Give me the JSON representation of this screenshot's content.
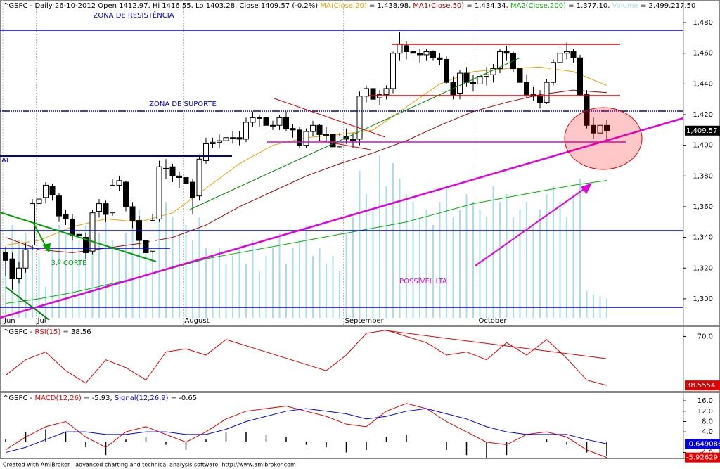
{
  "chart_data": [
    {
      "type": "candlestick",
      "legend": [
        {
          "text": "^GSPC - Daily 26-10-2012 Open 1412.97, Hi 1416.55, Lo 1403.28, Close 1409.57 (-0.2%) ",
          "color": "#000000"
        },
        {
          "text": "MA(Close,20)",
          "color": "#f0a000"
        },
        {
          "text": " = 1,438.98, ",
          "color": "#000000"
        },
        {
          "text": "MA1(Close,50)",
          "color": "#a00000"
        },
        {
          "text": " = 1,434.34, ",
          "color": "#000000"
        },
        {
          "text": "MA2(Close,200)",
          "color": "#00b000"
        },
        {
          "text": " = 1,377.10, ",
          "color": "#000000"
        },
        {
          "text": "Volume",
          "color": "#a8dcef"
        },
        {
          "text": " = 2,499,217.50",
          "color": "#000000"
        }
      ],
      "annotations": [
        "ZONA DE RESISTÊNCIA",
        "ZONA DE SUPORTE",
        "3.º CORTE",
        "POSSÍVEL LTA",
        "AL"
      ],
      "month_labels": [
        {
          "index": 0,
          "label": "Jun"
        },
        {
          "index": 5,
          "label": "Jul"
        },
        {
          "index": 27,
          "label": "August"
        },
        {
          "index": 51,
          "label": "September"
        },
        {
          "index": 71,
          "label": "October"
        }
      ],
      "open": [
        1330,
        1326,
        1313,
        1320,
        1335,
        1362,
        1366,
        1373,
        1367,
        1355,
        1352,
        1342,
        1340,
        1331,
        1357,
        1362,
        1356,
        1374,
        1376,
        1360,
        1351,
        1338,
        1331,
        1352,
        1385,
        1386,
        1380,
        1379,
        1376,
        1367,
        1390,
        1401,
        1402,
        1403,
        1405,
        1405,
        1404,
        1415,
        1418,
        1418,
        1413,
        1413,
        1418,
        1411,
        1410,
        1400,
        1409,
        1413,
        1407,
        1407,
        1399,
        1406,
        1404,
        1404,
        1432,
        1437,
        1431,
        1433,
        1437,
        1460,
        1465,
        1461,
        1460,
        1459,
        1461,
        1457,
        1456,
        1441,
        1434,
        1447,
        1441,
        1440,
        1445,
        1446,
        1450,
        1461,
        1460,
        1450,
        1441,
        1433,
        1432,
        1428,
        1441,
        1454,
        1460,
        1461,
        1457,
        1433,
        1413,
        1408,
        1412.97
      ],
      "high": [
        1334,
        1330,
        1324,
        1336,
        1365,
        1372,
        1376,
        1375,
        1369,
        1358,
        1355,
        1346,
        1343,
        1358,
        1365,
        1364,
        1378,
        1380,
        1377,
        1363,
        1354,
        1340,
        1355,
        1390,
        1391,
        1388,
        1383,
        1383,
        1378,
        1394,
        1405,
        1405,
        1407,
        1408,
        1409,
        1409,
        1418,
        1422,
        1420,
        1420,
        1416,
        1420,
        1422,
        1414,
        1412,
        1411,
        1416,
        1414,
        1412,
        1410,
        1408,
        1411,
        1408,
        1435,
        1439,
        1440,
        1436,
        1439,
        1461,
        1474,
        1468,
        1464,
        1463,
        1463,
        1462,
        1460,
        1458,
        1445,
        1449,
        1451,
        1446,
        1448,
        1451,
        1453,
        1463,
        1465,
        1461,
        1454,
        1446,
        1438,
        1436,
        1443,
        1456,
        1464,
        1467,
        1463,
        1459,
        1436,
        1418,
        1420,
        1416.55
      ],
      "low": [
        1315,
        1306,
        1310,
        1317,
        1332,
        1358,
        1362,
        1364,
        1350,
        1348,
        1338,
        1336,
        1326,
        1329,
        1353,
        1350,
        1354,
        1370,
        1357,
        1346,
        1333,
        1329,
        1330,
        1350,
        1378,
        1376,
        1372,
        1370,
        1355,
        1364,
        1388,
        1398,
        1398,
        1401,
        1401,
        1400,
        1402,
        1412,
        1412,
        1409,
        1410,
        1410,
        1409,
        1405,
        1398,
        1398,
        1406,
        1403,
        1403,
        1396,
        1398,
        1401,
        1398,
        1400,
        1428,
        1428,
        1426,
        1430,
        1434,
        1455,
        1456,
        1456,
        1454,
        1455,
        1455,
        1452,
        1440,
        1430,
        1430,
        1438,
        1435,
        1436,
        1439,
        1441,
        1447,
        1455,
        1448,
        1438,
        1431,
        1429,
        1424,
        1427,
        1439,
        1452,
        1456,
        1454,
        1432,
        1411,
        1404,
        1405,
        1403.28
      ],
      "close": [
        1325,
        1313,
        1320,
        1332,
        1362,
        1365,
        1374,
        1368,
        1354,
        1352,
        1341,
        1341,
        1330,
        1356,
        1362,
        1355,
        1374,
        1377,
        1360,
        1351,
        1338,
        1330,
        1351,
        1386,
        1385,
        1380,
        1379,
        1375,
        1366,
        1391,
        1401,
        1402,
        1403,
        1405,
        1405,
        1404,
        1415,
        1418,
        1418,
        1413,
        1413,
        1418,
        1411,
        1410,
        1400,
        1409,
        1413,
        1407,
        1407,
        1399,
        1406,
        1404,
        1403,
        1432,
        1437,
        1430,
        1433,
        1437,
        1460,
        1466,
        1461,
        1460,
        1459,
        1461,
        1457,
        1456,
        1441,
        1433,
        1447,
        1441,
        1440,
        1445,
        1446,
        1450,
        1461,
        1460,
        1450,
        1441,
        1433,
        1432,
        1428,
        1441,
        1454,
        1460,
        1461,
        1457,
        1433,
        1413,
        1408,
        1413,
        1409.57
      ],
      "volume": [
        9000000,
        12000000,
        10000000,
        11000000,
        15000000,
        8000000,
        4000000,
        9000000,
        12000000,
        11000000,
        13000000,
        10000000,
        12000000,
        9000000,
        11000000,
        13000000,
        10000000,
        9000000,
        11000000,
        12000000,
        14000000,
        10000000,
        12000000,
        16000000,
        15000000,
        13000000,
        11000000,
        12000000,
        10000000,
        13000000,
        9000000,
        8000000,
        9000000,
        7000000,
        8000000,
        9000000,
        7000000,
        10000000,
        6000000,
        8000000,
        9000000,
        11000000,
        7000000,
        9000000,
        10000000,
        12000000,
        8000000,
        9000000,
        7000000,
        8000000,
        6000000,
        11000000,
        13000000,
        19000000,
        16000000,
        14000000,
        21000000,
        17000000,
        20000000,
        18000000,
        16000000,
        15000000,
        13000000,
        14000000,
        12000000,
        15000000,
        17000000,
        13000000,
        14000000,
        16000000,
        15000000,
        14000000,
        13000000,
        17000000,
        15000000,
        16000000,
        13000000,
        14000000,
        15000000,
        12000000,
        14000000,
        16000000,
        17000000,
        15000000,
        13000000,
        16000000,
        18000000,
        3500000,
        3000000,
        2800000,
        2499217.5
      ],
      "volume_lim": [
        0,
        40000000
      ],
      "series": [
        {
          "name": "MA(Close,20)",
          "color": "#f0a000",
          "x": [
            0,
            5,
            10,
            15,
            20,
            25,
            30,
            35,
            40,
            45,
            50,
            55,
            60,
            65,
            70,
            75,
            80,
            85,
            90
          ],
          "values": [
            1335,
            1338,
            1347,
            1352,
            1350,
            1356,
            1372,
            1388,
            1400,
            1405,
            1407,
            1410,
            1425,
            1440,
            1448,
            1450,
            1451,
            1448,
            1438.98
          ]
        },
        {
          "name": "MA1(Close,50)",
          "color": "#a00000",
          "x": [
            0,
            5,
            10,
            15,
            20,
            25,
            30,
            35,
            40,
            45,
            50,
            55,
            60,
            65,
            70,
            75,
            80,
            85,
            90
          ],
          "values": [
            1340,
            1332,
            1330,
            1333,
            1336,
            1340,
            1348,
            1360,
            1370,
            1380,
            1388,
            1395,
            1403,
            1413,
            1422,
            1428,
            1433,
            1436,
            1434.34
          ]
        },
        {
          "name": "MA2(Close,200)",
          "color": "#00b000",
          "x": [
            0,
            5,
            10,
            15,
            20,
            25,
            30,
            35,
            40,
            45,
            50,
            55,
            60,
            65,
            70,
            75,
            80,
            85,
            90
          ],
          "values": [
            1297,
            1300,
            1304,
            1309,
            1314,
            1320,
            1326,
            1330,
            1334,
            1338,
            1342,
            1346,
            1350,
            1356,
            1362,
            1366,
            1370,
            1374,
            1377.1
          ]
        }
      ],
      "value_labels": [
        {
          "value": 1409.57,
          "label": "1,409.57"
        }
      ],
      "ylim": [
        1283,
        1494.7
      ],
      "yticks": [
        {
          "value": 1300,
          "label": "1,300"
        },
        {
          "value": 1320,
          "label": "1,320"
        },
        {
          "value": 1340,
          "label": "1,340"
        },
        {
          "value": 1360,
          "label": "1,360"
        },
        {
          "value": 1380,
          "label": "1,380"
        },
        {
          "value": 1400,
          "label": "1,400"
        },
        {
          "value": 1420,
          "label": "1,420"
        },
        {
          "value": 1440,
          "label": "1,440"
        },
        {
          "value": 1460,
          "label": "1,460"
        },
        {
          "value": 1480,
          "label": "1,480"
        }
      ]
    },
    {
      "type": "line",
      "legend": [
        {
          "text": "^GSPC - ",
          "color": "#000000"
        },
        {
          "text": "RSI(15)",
          "color": "#e00000"
        },
        {
          "text": " = 38.56",
          "color": "#000000"
        }
      ],
      "series": [
        {
          "name": "RSI(15)",
          "color": "#e00000",
          "x": [
            0,
            3,
            6,
            9,
            12,
            15,
            18,
            21,
            24,
            27,
            30,
            33,
            36,
            39,
            42,
            45,
            48,
            51,
            54,
            57,
            60,
            63,
            66,
            69,
            72,
            75,
            78,
            81,
            84,
            87,
            90
          ],
          "values": [
            45,
            55,
            60,
            48,
            40,
            55,
            50,
            42,
            60,
            62,
            58,
            68,
            64,
            60,
            56,
            52,
            48,
            58,
            72,
            74,
            70,
            66,
            58,
            60,
            55,
            66,
            58,
            68,
            56,
            42,
            38.56
          ]
        }
      ],
      "value_labels": [
        {
          "value": 38.5554,
          "label": "38.5554",
          "color": "#e00000"
        }
      ],
      "ylim": [
        35,
        76.5
      ],
      "yticks": [
        {
          "value": 70,
          "label": "70.0"
        }
      ]
    },
    {
      "type": "macd",
      "legend": [
        {
          "text": "^GSPC - ",
          "color": "#000000"
        },
        {
          "text": "MACD(12,26)",
          "color": "#e00000"
        },
        {
          "text": " = -5.93, ",
          "color": "#000000"
        },
        {
          "text": "Signal(12,26,9)",
          "color": "#0000e0"
        },
        {
          "text": " = -0.65",
          "color": "#000000"
        }
      ],
      "x": [
        0,
        3,
        6,
        9,
        12,
        15,
        18,
        21,
        24,
        27,
        30,
        33,
        36,
        39,
        42,
        45,
        48,
        51,
        54,
        57,
        60,
        63,
        66,
        69,
        72,
        75,
        78,
        81,
        84,
        87,
        90
      ],
      "series": [
        {
          "name": "MACD(12,26)",
          "color": "#e00000",
          "values": [
            -3,
            2,
            6,
            8,
            2,
            -2,
            4,
            6,
            3,
            0,
            4,
            9,
            12,
            13,
            14,
            12,
            10,
            7,
            6,
            12,
            15,
            13,
            8,
            4,
            0,
            -1,
            3,
            4,
            2,
            -3,
            -5.93
          ]
        },
        {
          "name": "Signal(12,26,9)",
          "color": "#0000e0",
          "values": [
            -4,
            -2,
            1,
            4,
            4,
            3,
            3,
            4,
            4,
            3,
            3,
            5,
            8,
            10,
            12,
            13,
            12,
            11,
            9,
            10,
            12,
            13,
            11,
            9,
            6,
            4,
            3,
            3,
            3,
            1,
            -0.65
          ]
        }
      ],
      "histogram": [
        1,
        4,
        5,
        4,
        -2,
        -5,
        1,
        2,
        -1,
        -3,
        1,
        4,
        4,
        3,
        2,
        -1,
        -2,
        -4,
        -3,
        2,
        3,
        0,
        -3,
        -5,
        -6,
        -5,
        0,
        1,
        -1,
        -4,
        -5.28
      ],
      "value_labels": [
        {
          "value": -0.649086,
          "label": "-0.649086",
          "color": "#0000e0"
        },
        {
          "value": -5.92629,
          "label": "-5.92629",
          "color": "#e00000"
        }
      ],
      "ylim": [
        -6.3,
        19.3
      ],
      "yticks": [
        {
          "value": -4,
          "label": "-4.0"
        },
        {
          "value": 4,
          "label": "4.0"
        },
        {
          "value": 8,
          "label": "8.0"
        },
        {
          "value": 12,
          "label": "12.0"
        },
        {
          "value": 16,
          "label": "16.0"
        }
      ]
    }
  ],
  "footer": "Created with AmiBroker - advanced charting and technical analysis software. http://www.amibroker.com"
}
